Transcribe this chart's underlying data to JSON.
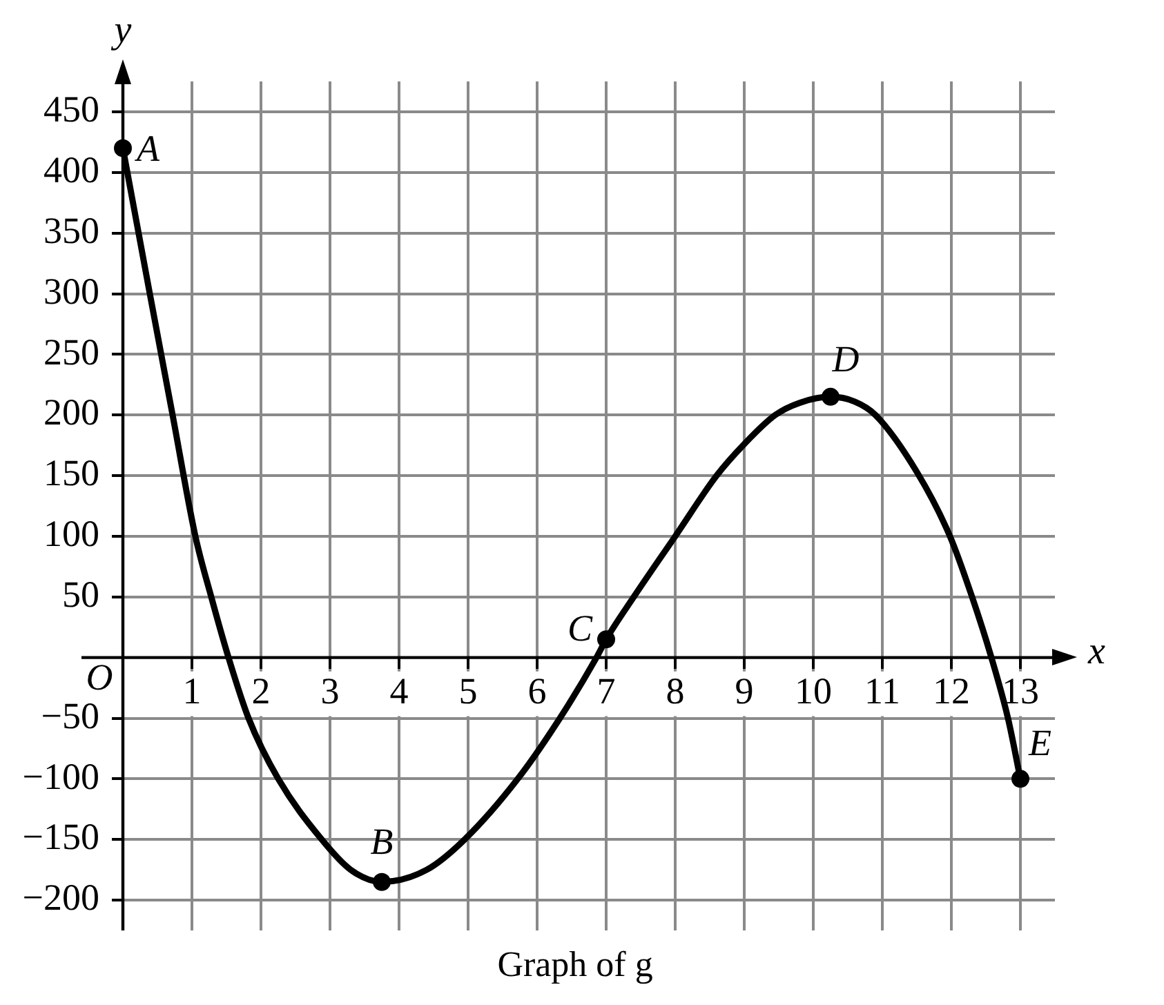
{
  "chart_data": {
    "type": "line",
    "title": "Graph of g",
    "xlabel": "x",
    "ylabel": "y",
    "annotations": [
      "O",
      {
        "text": "A",
        "x": 0,
        "y": 420
      },
      {
        "text": "B",
        "x": 3.75,
        "y": -185
      },
      {
        "text": "C",
        "x": 7,
        "y": 15
      },
      {
        "text": "D",
        "x": 10.25,
        "y": 215
      },
      {
        "text": "E",
        "x": 13,
        "y": -100
      }
    ],
    "series": [
      {
        "color": "#000000",
        "marker": "none",
        "x": [
          0,
          0.39,
          0.72,
          1.05,
          1.28,
          1.53,
          1.82,
          2.25,
          2.88,
          3.3,
          3.75,
          4.4,
          4.95,
          5.72,
          6.33,
          6.86,
          7,
          7.4,
          8,
          8.6,
          9,
          9.45,
          9.8,
          10.25,
          10.6,
          10.9,
          11.5,
          11.98,
          12.3,
          12.58,
          12.82,
          13
        ],
        "values": [
          420,
          300,
          200,
          100,
          50,
          0,
          -50,
          -100,
          -150,
          -175,
          -185,
          -175,
          -150,
          -100,
          -50,
          0,
          15,
          50,
          100,
          150,
          176,
          200,
          210,
          215,
          211,
          200,
          153,
          100,
          50,
          0,
          -50,
          -100
        ]
      },
      {
        "type": "scatter",
        "color": "#000000",
        "marker": "circle",
        "x": [
          0,
          3.75,
          7,
          10.25,
          13
        ],
        "values": [
          420,
          -185,
          15,
          215,
          -100
        ]
      }
    ],
    "xlim": [
      0,
      13.5
    ],
    "ylim": [
      -225,
      475
    ],
    "xticks": [
      1,
      2,
      3,
      4,
      5,
      6,
      7,
      8,
      9,
      10,
      11,
      12,
      13
    ],
    "yticks": [
      -200,
      -150,
      -100,
      -50,
      50,
      100,
      150,
      200,
      250,
      300,
      350,
      400,
      450
    ],
    "grid": true
  }
}
